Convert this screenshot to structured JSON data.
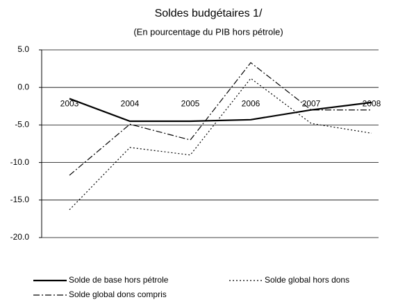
{
  "chart_data": {
    "type": "line",
    "title": "Soldes budgétaires 1/",
    "subtitle": "(En pourcentage du PIB hors pétrole)",
    "categories": [
      "2003",
      "2004",
      "2005",
      "2006",
      "2007",
      "2008"
    ],
    "series": [
      {
        "name": "Solde de base hors pétrole",
        "color": "#000000",
        "dash": "solid",
        "values": [
          -1.5,
          -4.5,
          -4.5,
          -4.3,
          -3.0,
          -2.0
        ]
      },
      {
        "name": "Solde global hors dons",
        "color": "#000000",
        "dash": "dotted",
        "values": [
          -16.3,
          -8.0,
          -9.0,
          1.2,
          -4.8,
          -6.1
        ]
      },
      {
        "name": "Solde global dons compris",
        "color": "#000000",
        "dash": "dashdot",
        "values": [
          -11.7,
          -4.9,
          -7.0,
          3.3,
          -3.0,
          -3.0
        ]
      }
    ],
    "ylim": [
      -20,
      5
    ],
    "yticks": [
      {
        "value": 5,
        "label": "5.0"
      },
      {
        "value": 0,
        "label": "0.0"
      },
      {
        "value": -5,
        "label": "-5.0"
      },
      {
        "value": -10,
        "label": "-10.0"
      },
      {
        "value": -15,
        "label": "-15.0"
      },
      {
        "value": -20,
        "label": "-20.0"
      }
    ],
    "grid": true,
    "legend": "bottom"
  }
}
